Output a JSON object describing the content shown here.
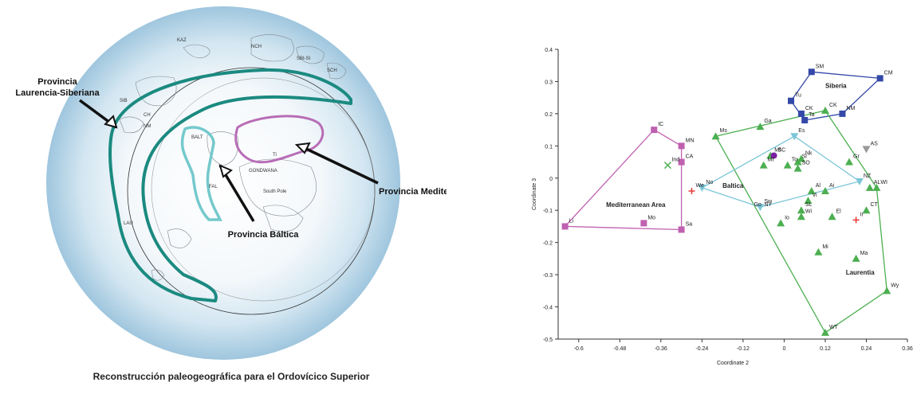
{
  "map": {
    "caption": "Reconstrucción paleogeográfica para el Ordovícico Superior",
    "labels": {
      "laurencia_siberiana": [
        "Provincia",
        "Laurencia-Siberiana"
      ],
      "baltica": "Provincia Báltica",
      "mediterranea": "Provincia Mediterránea"
    },
    "place_labels": {
      "kaz": "KAZ",
      "nch": "NCH",
      "sbi": "SBI-SI",
      "sch": "SCH",
      "sib": "SIB",
      "balt": "BALT",
      "gondwana": "GONDWANA",
      "south_pole": "South Pole",
      "lau": "LAU",
      "fal": "FAL",
      "ch": "CH",
      "nm": "NM",
      "ti": "Ti"
    },
    "colors": {
      "laurentia": "#1b8a80",
      "baltica": "#74c9cc",
      "mediterranea": "#b86db6"
    }
  },
  "chart_data": {
    "type": "scatter",
    "xlabel": "Coordinate 2",
    "ylabel": "Coordinate 3",
    "xlim": [
      -0.66,
      0.36
    ],
    "ylim": [
      -0.5,
      0.4
    ],
    "xticks": [
      -0.6,
      -0.48,
      -0.36,
      -0.24,
      -0.12,
      0,
      0.12,
      0.24,
      0.36
    ],
    "xtick_labels": [
      "-0.6",
      "-0.48",
      "-0.36",
      "-0.24",
      "-0.12",
      "0",
      "0.12",
      "0.24",
      "0.36"
    ],
    "yticks": [
      0.4,
      0.3,
      0.2,
      0.1,
      0,
      -0.1,
      -0.2,
      -0.3,
      -0.4,
      -0.5
    ],
    "ytick_labels": [
      "0.4",
      "0.3",
      "0.2",
      "0.1",
      "0",
      "-0.1",
      "-0.2",
      "-0.3",
      "-0.4",
      "-0.5"
    ],
    "series": [
      {
        "name": "Siberia",
        "color": "#3348a8",
        "marker": "square",
        "hull": [
          "SM",
          "CM",
          "NM",
          "Ta",
          "Tu"
        ],
        "points": [
          {
            "label": "SM",
            "x": 0.08,
            "y": 0.33
          },
          {
            "label": "CM",
            "x": 0.28,
            "y": 0.31
          },
          {
            "label": "NM",
            "x": 0.17,
            "y": 0.2
          },
          {
            "label": "Tu",
            "x": 0.02,
            "y": 0.24
          },
          {
            "label": "CK",
            "x": 0.05,
            "y": 0.2
          },
          {
            "label": "Ta",
            "x": 0.06,
            "y": 0.18
          }
        ]
      },
      {
        "name": "Laurentia",
        "color": "#4caf50",
        "marker": "triangle",
        "hull": [
          "Ms",
          "CK",
          "WI",
          "Wy",
          "WT"
        ],
        "points": [
          {
            "label": "Ms",
            "x": -0.2,
            "y": 0.13
          },
          {
            "label": "Ga",
            "x": -0.07,
            "y": 0.16
          },
          {
            "label": "CK",
            "x": 0.12,
            "y": 0.21
          },
          {
            "label": "Mf",
            "x": -0.04,
            "y": 0.07
          },
          {
            "label": "Nk",
            "x": 0.05,
            "y": 0.06
          },
          {
            "label": "Gr",
            "x": 0.19,
            "y": 0.05
          },
          {
            "label": "Mt",
            "x": -0.06,
            "y": 0.04
          },
          {
            "label": "To",
            "x": 0.01,
            "y": 0.04
          },
          {
            "label": "Sl",
            "x": 0.04,
            "y": 0.05
          },
          {
            "label": "SO",
            "x": 0.04,
            "y": 0.03
          },
          {
            "label": "Al",
            "x": 0.08,
            "y": -0.04
          },
          {
            "label": "Ai",
            "x": 0.12,
            "y": -0.04
          },
          {
            "label": "AL",
            "x": 0.25,
            "y": -0.03
          },
          {
            "label": "WI",
            "x": 0.27,
            "y": -0.03
          },
          {
            "label": "Vi",
            "x": 0.07,
            "y": -0.07
          },
          {
            "label": "SL",
            "x": 0.05,
            "y": -0.1
          },
          {
            "label": "Wi",
            "x": 0.05,
            "y": -0.12
          },
          {
            "label": "Io",
            "x": -0.01,
            "y": -0.14
          },
          {
            "label": "El",
            "x": 0.14,
            "y": -0.12
          },
          {
            "label": "CT",
            "x": 0.24,
            "y": -0.1
          },
          {
            "label": "Mi",
            "x": 0.1,
            "y": -0.23
          },
          {
            "label": "Ma",
            "x": 0.21,
            "y": -0.25
          },
          {
            "label": "Wy",
            "x": 0.3,
            "y": -0.35
          },
          {
            "label": "WT",
            "x": 0.12,
            "y": -0.48
          }
        ]
      },
      {
        "name": "Baltica",
        "color": "#7cc6d8",
        "marker": "triangle-down",
        "hull": [
          "Es",
          "NZ",
          "Sw",
          "No"
        ],
        "points": [
          {
            "label": "No",
            "x": -0.24,
            "y": -0.03
          },
          {
            "label": "Es",
            "x": 0.03,
            "y": 0.13
          },
          {
            "label": "NZ",
            "x": 0.22,
            "y": -0.01
          },
          {
            "label": "Sw",
            "x": -0.07,
            "y": -0.09
          }
        ]
      },
      {
        "name": "Mediterranean Area",
        "color": "#c060b0",
        "marker": "square",
        "hull": [
          "IC",
          "MN",
          "Sa",
          "Li"
        ],
        "points": [
          {
            "label": "IC",
            "x": -0.38,
            "y": 0.15
          },
          {
            "label": "MN",
            "x": -0.3,
            "y": 0.1
          },
          {
            "label": "CA",
            "x": -0.3,
            "y": 0.05
          },
          {
            "label": "Mo",
            "x": -0.41,
            "y": -0.14
          },
          {
            "label": "Sa",
            "x": -0.3,
            "y": -0.16
          },
          {
            "label": "Li",
            "x": -0.64,
            "y": -0.15
          }
        ]
      }
    ],
    "others": [
      {
        "label": "Ind",
        "x": -0.34,
        "y": 0.04,
        "marker": "x",
        "color": "#4caf50"
      },
      {
        "label": "We",
        "x": -0.27,
        "y": -0.04,
        "marker": "plus",
        "color": "#e53935"
      },
      {
        "label": "Ir",
        "x": 0.21,
        "y": -0.13,
        "marker": "plus",
        "color": "#e53935"
      },
      {
        "label": "AS",
        "x": 0.24,
        "y": 0.09,
        "marker": "triangle-down",
        "color": "#999999"
      },
      {
        "label": "SC",
        "x": -0.03,
        "y": 0.07,
        "marker": "circle",
        "color": "#7b1fa2"
      },
      {
        "label": "NY",
        "x": -0.07,
        "y": -0.1,
        "marker": "none",
        "color": "#222222"
      },
      {
        "label": "Go",
        "x": -0.1,
        "y": -0.1,
        "marker": "none",
        "color": "#222222"
      }
    ],
    "group_labels": [
      {
        "text": "Siberia",
        "x": 0.12,
        "y": 0.28
      },
      {
        "text": "Baltica",
        "x": -0.18,
        "y": -0.03
      },
      {
        "text": "Mediterranean Area",
        "x": -0.52,
        "y": -0.09
      },
      {
        "text": "Laurentia",
        "x": 0.18,
        "y": -0.3
      }
    ]
  }
}
